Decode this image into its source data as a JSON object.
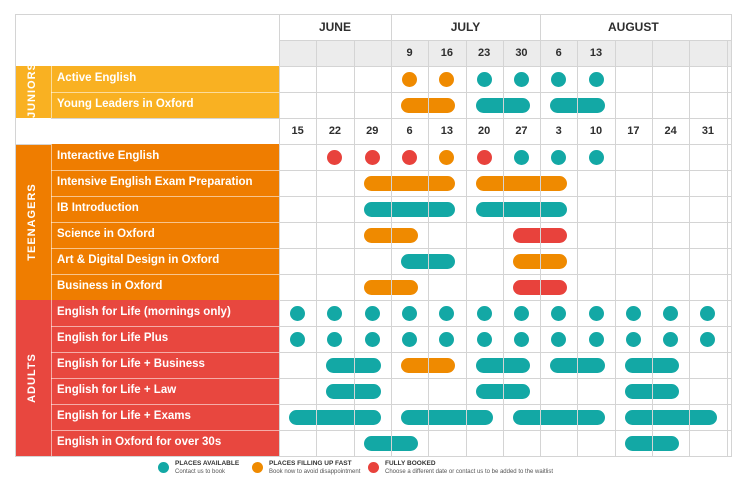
{
  "colors": {
    "available": "#13a8a5",
    "filling": "#ef8a00",
    "booked": "#e8423c",
    "juniors": "#f9b122",
    "teenagers": "#ef7d00",
    "adults": "#e8473f"
  },
  "months": [
    "JUNE",
    "JULY",
    "AUGUST"
  ],
  "junior_weeks": [
    "9",
    "16",
    "23",
    "30",
    "6",
    "13"
  ],
  "weeks": [
    "15",
    "22",
    "29",
    "6",
    "13",
    "20",
    "27",
    "3",
    "10",
    "17",
    "24",
    "31"
  ],
  "categories": [
    {
      "label": "JUNIORS",
      "color": "#f9b122",
      "programs": [
        {
          "name": "Active English",
          "marks": [
            {
              "kind": "dot",
              "col": 3,
              "status": "filling"
            },
            {
              "kind": "dot",
              "col": 4,
              "status": "filling"
            },
            {
              "kind": "dot",
              "col": 5,
              "status": "available"
            },
            {
              "kind": "dot",
              "col": 6,
              "status": "available"
            },
            {
              "kind": "dot",
              "col": 7,
              "status": "available"
            },
            {
              "kind": "dot",
              "col": 8,
              "status": "available"
            }
          ]
        },
        {
          "name": "Young Leaders in Oxford",
          "marks": [
            {
              "kind": "bar",
              "col": 3,
              "span": 2,
              "status": "filling"
            },
            {
              "kind": "bar",
              "col": 5,
              "span": 2,
              "status": "available"
            },
            {
              "kind": "bar",
              "col": 7,
              "span": 2,
              "status": "available"
            }
          ]
        }
      ]
    },
    {
      "label": "TEENAGERS",
      "color": "#ef7d00",
      "programs": [
        {
          "name": "Interactive English",
          "marks": [
            {
              "kind": "dot",
              "col": 1,
              "status": "booked"
            },
            {
              "kind": "dot",
              "col": 2,
              "status": "booked"
            },
            {
              "kind": "dot",
              "col": 3,
              "status": "booked"
            },
            {
              "kind": "dot",
              "col": 4,
              "status": "filling"
            },
            {
              "kind": "dot",
              "col": 5,
              "status": "booked"
            },
            {
              "kind": "dot",
              "col": 6,
              "status": "available"
            },
            {
              "kind": "dot",
              "col": 7,
              "status": "available"
            },
            {
              "kind": "dot",
              "col": 8,
              "status": "available"
            }
          ]
        },
        {
          "name": "Intensive English Exam Preparation",
          "marks": [
            {
              "kind": "bar",
              "col": 2,
              "span": 3,
              "status": "filling"
            },
            {
              "kind": "bar",
              "col": 5,
              "span": 3,
              "status": "filling"
            }
          ]
        },
        {
          "name": "IB Introduction",
          "marks": [
            {
              "kind": "bar",
              "col": 2,
              "span": 3,
              "status": "available"
            },
            {
              "kind": "bar",
              "col": 5,
              "span": 3,
              "status": "available"
            }
          ]
        },
        {
          "name": "Science in Oxford",
          "marks": [
            {
              "kind": "bar",
              "col": 2,
              "span": 2,
              "status": "filling"
            },
            {
              "kind": "bar",
              "col": 6,
              "span": 2,
              "status": "booked"
            }
          ]
        },
        {
          "name": "Art & Digital Design in Oxford",
          "marks": [
            {
              "kind": "bar",
              "col": 3,
              "span": 2,
              "status": "available"
            },
            {
              "kind": "bar",
              "col": 6,
              "span": 2,
              "status": "filling"
            }
          ]
        },
        {
          "name": "Business in Oxford",
          "marks": [
            {
              "kind": "bar",
              "col": 2,
              "span": 2,
              "status": "filling"
            },
            {
              "kind": "bar",
              "col": 6,
              "span": 2,
              "status": "booked"
            }
          ]
        }
      ]
    },
    {
      "label": "ADULTS",
      "color": "#e8473f",
      "programs": [
        {
          "name": "English for Life (mornings only)",
          "marks": [
            {
              "kind": "dot",
              "col": 0,
              "status": "available"
            },
            {
              "kind": "dot",
              "col": 1,
              "status": "available"
            },
            {
              "kind": "dot",
              "col": 2,
              "status": "available"
            },
            {
              "kind": "dot",
              "col": 3,
              "status": "available"
            },
            {
              "kind": "dot",
              "col": 4,
              "status": "available"
            },
            {
              "kind": "dot",
              "col": 5,
              "status": "available"
            },
            {
              "kind": "dot",
              "col": 6,
              "status": "available"
            },
            {
              "kind": "dot",
              "col": 7,
              "status": "available"
            },
            {
              "kind": "dot",
              "col": 8,
              "status": "available"
            },
            {
              "kind": "dot",
              "col": 9,
              "status": "available"
            },
            {
              "kind": "dot",
              "col": 10,
              "status": "available"
            },
            {
              "kind": "dot",
              "col": 11,
              "status": "available"
            }
          ]
        },
        {
          "name": "English for Life Plus",
          "marks": [
            {
              "kind": "dot",
              "col": 0,
              "status": "available"
            },
            {
              "kind": "dot",
              "col": 1,
              "status": "available"
            },
            {
              "kind": "dot",
              "col": 2,
              "status": "available"
            },
            {
              "kind": "dot",
              "col": 3,
              "status": "available"
            },
            {
              "kind": "dot",
              "col": 4,
              "status": "available"
            },
            {
              "kind": "dot",
              "col": 5,
              "status": "available"
            },
            {
              "kind": "dot",
              "col": 6,
              "status": "available"
            },
            {
              "kind": "dot",
              "col": 7,
              "status": "available"
            },
            {
              "kind": "dot",
              "col": 8,
              "status": "available"
            },
            {
              "kind": "dot",
              "col": 9,
              "status": "available"
            },
            {
              "kind": "dot",
              "col": 10,
              "status": "available"
            },
            {
              "kind": "dot",
              "col": 11,
              "status": "available"
            }
          ]
        },
        {
          "name": "English for Life + Business",
          "marks": [
            {
              "kind": "bar",
              "col": 1,
              "span": 2,
              "status": "available"
            },
            {
              "kind": "bar",
              "col": 3,
              "span": 2,
              "status": "filling"
            },
            {
              "kind": "bar",
              "col": 5,
              "span": 2,
              "status": "available"
            },
            {
              "kind": "bar",
              "col": 7,
              "span": 2,
              "status": "available"
            },
            {
              "kind": "bar",
              "col": 9,
              "span": 2,
              "status": "available"
            }
          ]
        },
        {
          "name": "English for Life + Law",
          "marks": [
            {
              "kind": "bar",
              "col": 1,
              "span": 2,
              "status": "available"
            },
            {
              "kind": "bar",
              "col": 5,
              "span": 2,
              "status": "available"
            },
            {
              "kind": "bar",
              "col": 9,
              "span": 2,
              "status": "available"
            }
          ]
        },
        {
          "name": "English for Life + Exams",
          "marks": [
            {
              "kind": "bar",
              "col": 0,
              "span": 3,
              "status": "available"
            },
            {
              "kind": "bar",
              "col": 3,
              "span": 3,
              "status": "available"
            },
            {
              "kind": "bar",
              "col": 6,
              "span": 3,
              "status": "available"
            },
            {
              "kind": "bar",
              "col": 9,
              "span": 3,
              "status": "available"
            }
          ]
        },
        {
          "name": "English in Oxford for over 30s",
          "marks": [
            {
              "kind": "bar",
              "col": 2,
              "span": 2,
              "status": "available"
            },
            {
              "kind": "bar",
              "col": 9,
              "span": 2,
              "status": "available"
            }
          ]
        }
      ]
    }
  ],
  "legend": [
    {
      "status": "available",
      "title": "PLACES AVAILABLE",
      "subtitle": "Contact us to book"
    },
    {
      "status": "filling",
      "title": "PLACES FILLING UP FAST",
      "subtitle": "Book now to avoid disappointment"
    },
    {
      "status": "booked",
      "title": "FULLY BOOKED",
      "subtitle": "Choose a different date or contact us to be added to the waitlist"
    }
  ]
}
